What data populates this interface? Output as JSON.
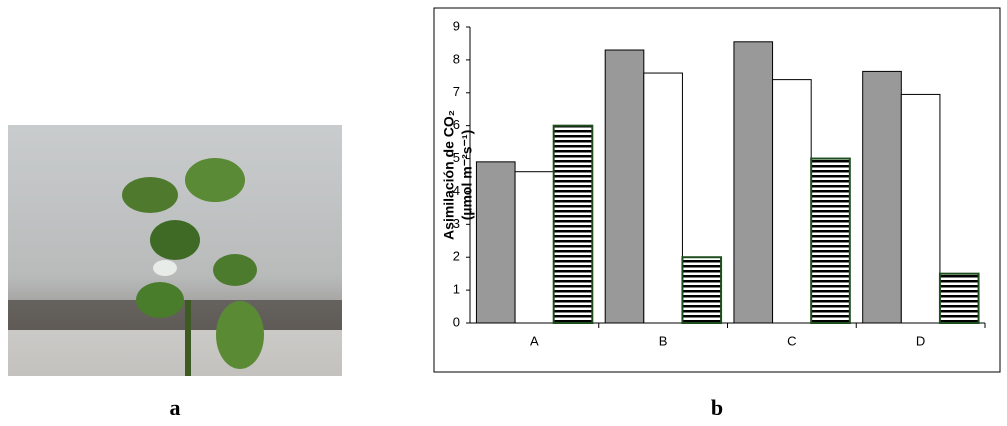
{
  "panel_labels": [
    "a",
    "b"
  ],
  "chart_data": {
    "type": "bar",
    "ylabel": [
      "Asimilación de CO₂",
      "(µmol m⁻²s⁻¹)"
    ],
    "categories": [
      "A",
      "B",
      "C",
      "D"
    ],
    "series": [
      {
        "color": "#999999",
        "values": [
          4.9,
          8.3,
          8.55,
          7.65
        ]
      },
      {
        "color": "#ffffff",
        "values": [
          4.6,
          7.6,
          7.4,
          6.95
        ]
      },
      {
        "color": "#1e4d1e",
        "values": [
          6.0,
          2.0,
          5.0,
          1.5
        ]
      }
    ],
    "ylim": [
      0,
      9
    ],
    "yticks": [
      0,
      1,
      2,
      3,
      4,
      5,
      6,
      7,
      8,
      9
    ],
    "grid": false
  }
}
